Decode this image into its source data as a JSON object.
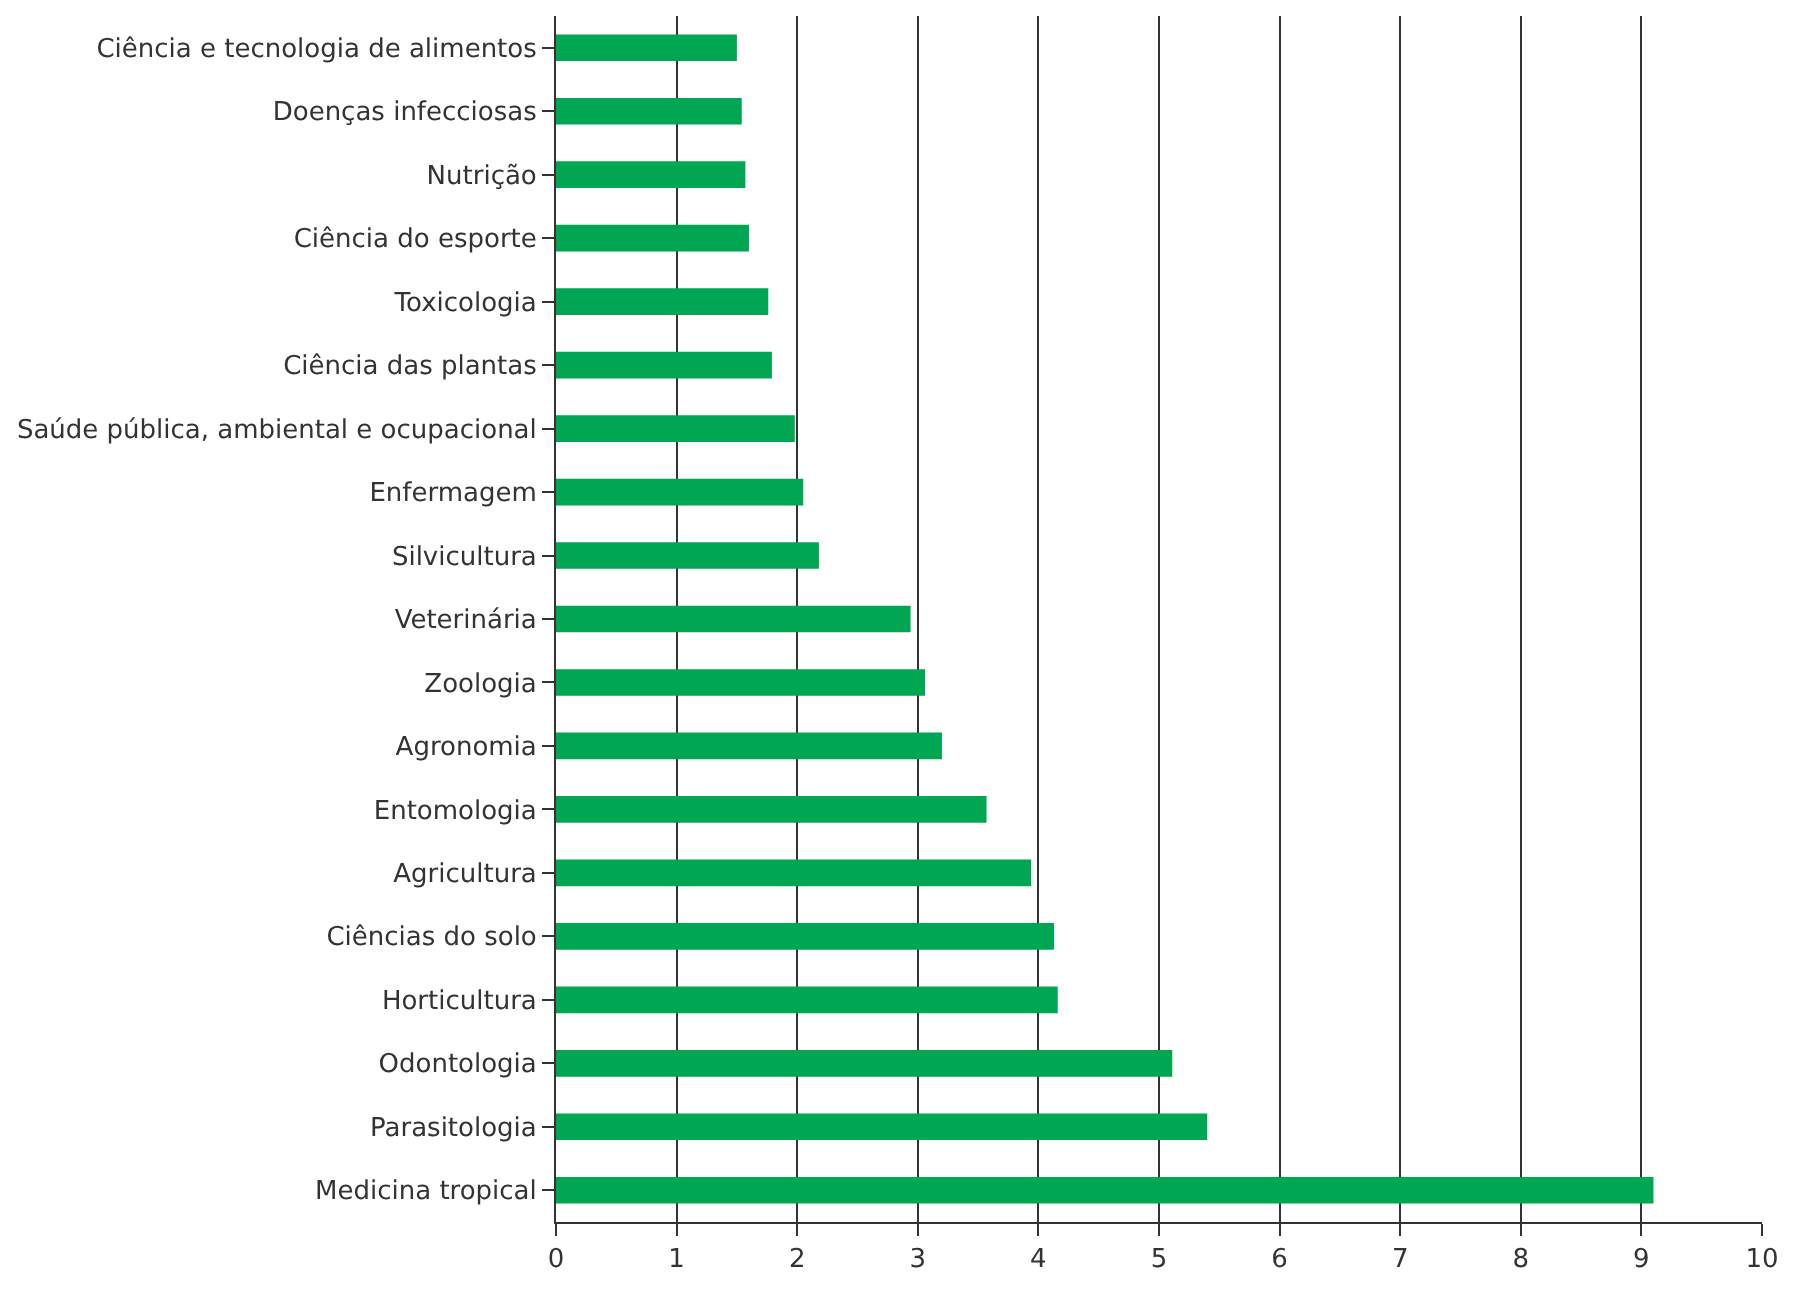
{
  "chart_data": {
    "type": "bar",
    "orientation": "horizontal",
    "categories": [
      "Ciência e tecnologia de alimentos",
      "Doenças infecciosas",
      "Nutrição",
      "Ciência do esporte",
      "Toxicologia",
      "Ciência das plantas",
      "Saúde pública, ambiental e ocupacional",
      "Enfermagem",
      "Silvicultura",
      "Veterinária",
      "Zoologia",
      "Agronomia",
      "Entomologia",
      "Agricultura",
      "Ciências do solo",
      "Horticultura",
      "Odontologia",
      "Parasitologia",
      "Medicina tropical"
    ],
    "values": [
      1.5,
      1.54,
      1.57,
      1.6,
      1.76,
      1.79,
      1.98,
      2.05,
      2.18,
      2.94,
      3.06,
      3.2,
      3.57,
      3.94,
      4.13,
      4.16,
      5.11,
      5.4,
      9.1
    ],
    "color": "#00a651",
    "xlim": [
      0,
      10
    ],
    "xticks": [
      0,
      1,
      2,
      3,
      4,
      5,
      6,
      7,
      8,
      9,
      10
    ],
    "grid": "x",
    "legend": false
  }
}
